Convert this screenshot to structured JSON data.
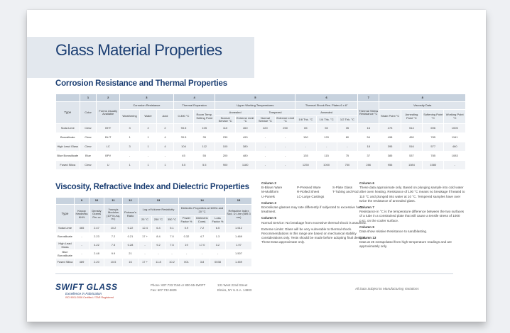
{
  "title": "Glass Material Properties",
  "section1": {
    "heading": "Corrosion Resistance and Thermal Properties",
    "colnums": [
      "1",
      "2",
      "3",
      "4",
      "5",
      "6",
      "7",
      "8"
    ],
    "type_label": "Type",
    "groups": {
      "color": "Color",
      "forms": "Forms Usually Available",
      "corrosion": "Corrosion Resistance",
      "thermal_expansion": "Thermal Expansion",
      "upper_working": "Upper Working Temperatures",
      "thermal_shock": "Thermal Shock Res. Plates 6 x 6\"",
      "thermal_stress": "Thermal Stress Resistance °C",
      "viscosity": "Viscosity Data",
      "annealed": "Annealed",
      "tempered": "Tempered",
      "annealed2": "Annealed"
    },
    "subheaders": [
      "Weathering",
      "Water",
      "Acid",
      "0-300 °C",
      "Room Temp. Setting Point",
      "Normal Service °C",
      "Extreme Limit °C",
      "Normal Service °C",
      "Extreme Limit °C",
      "1/8 Thk. °C",
      "1/4 Thk. °C",
      "1/2 Thk. °C",
      "Strain Point °C",
      "Annealing Point °C",
      "Softening Point °C",
      "Working Point °C"
    ],
    "rows": [
      [
        "Soda Lime",
        "Clear",
        "BHT",
        "3",
        "2",
        "2",
        "93.5",
        "105",
        "110",
        "460",
        "220",
        "250",
        "65",
        "50",
        "35",
        "16",
        "473",
        "514",
        "696",
        "1005"
      ],
      [
        "Borosilicate",
        "Clear",
        "BLIT",
        "1",
        "1",
        "4",
        "33.5",
        "35",
        "230",
        "490",
        "-",
        "-",
        "150",
        "120",
        "80",
        "54",
        "498",
        "450",
        "785",
        "1161"
      ],
      [
        "High Lead Glass",
        "Clear",
        "LC",
        "3",
        "1",
        "4",
        "104",
        "112",
        "100",
        "380",
        "-",
        "-",
        "-",
        "-",
        "-",
        "18",
        "395",
        "516",
        "577",
        "460"
      ],
      [
        "Blue Borosilicate",
        "Blue",
        "BPV",
        "-",
        "-",
        "-",
        "45",
        "55",
        "200",
        "480",
        "-",
        "-",
        "135",
        "115",
        "75",
        "37",
        "385",
        "537",
        "785",
        "1083"
      ],
      [
        "Fused Silica",
        "Clear",
        "U",
        "1",
        "1",
        "1",
        "5.5",
        "5.5",
        "900",
        "1180",
        "-",
        "-",
        "1250",
        "1000",
        "750",
        "286",
        "956",
        "1084",
        "1580",
        "-"
      ]
    ]
  },
  "section2": {
    "heading": "Viscosity, Refractive Index and Dielectric Properties",
    "colnums": [
      "9",
      "10",
      "11",
      "12",
      "13",
      "14",
      "15"
    ],
    "type_label": "Type",
    "headers": {
      "knoop": "Knoop Hardness KHN",
      "density": "Density Grams Per cc",
      "youngs": "Young's Modulus (10⁶ lb./sq. in.)",
      "poisson": "Poisson's Ratio",
      "log_resistivity": "Log of Volume Resistivity",
      "dielectric": "Dielectric Properties at 1MHz and 20 °C",
      "refractive": "Refractive Index Sod. D Line (589.3 nm)"
    },
    "subheaders": [
      "25 °C",
      "250 °C",
      "350 °C",
      "Power Factor %",
      "Dielectric Const.",
      "Loss Factor %"
    ],
    "rows": [
      [
        "Soda Lime",
        "465",
        "2.47",
        "10.2",
        "0.22",
        "12.4",
        "6.4",
        "5.1",
        "0.9",
        "7.2",
        "6.5",
        "1.512"
      ],
      [
        "Borosilicate",
        "-",
        "2.23",
        "7.2",
        "0.21",
        "17 +",
        "8.4",
        "7.0",
        "0.32",
        "4.7",
        "1.3",
        "1.469"
      ],
      [
        "High Lead Glass",
        "-",
        "4.22",
        "7.5",
        "0.28",
        "-",
        "9.2",
        "7.5",
        "19",
        "17.0",
        "3.2",
        "1.97"
      ],
      [
        "Blue Borosilicate",
        "-",
        "2.48",
        "9.9",
        "21",
        "-",
        "-",
        "-",
        "-",
        "-",
        "-",
        "1.507"
      ],
      [
        "Fused Silica",
        "489",
        "2.20",
        "10.5",
        "16",
        "17 +",
        "11.8",
        "10.2",
        "001",
        "3.8",
        "0038",
        "1.459"
      ]
    ]
  },
  "notes": {
    "col2": {
      "heading": "Column 2",
      "items": [
        "B-Blown Ware",
        "P-Pressed Ware",
        "S-Plate Glass",
        "M-Multiform",
        "R-Rolled Sheet",
        "T-Tubing and Rod",
        "U-Panels",
        "LC-Large Castings",
        ""
      ]
    },
    "col3": {
      "heading": "Column 3",
      "text": "Borosilicate glasses may rate differently if subjected to excessive heat treatment."
    },
    "col5": {
      "heading": "Column 5",
      "text": "Normal Service: No breakage from excessive thermal shock is assumed.",
      "text2": "Extreme Limits: Glass will be very vulnerable to thermal shock. Recommendations in this range are based on mechanical stability considerations only. Tests should be made before adopting final designs. These Data approximate only."
    },
    "col6": {
      "heading": "Column 6",
      "text": "These data approximate only. Based on plunging sample into cold water after oven heating. Resistance of 100 °C means no breakage if heated to 110 °C and plunged into water at 10 °C. Tempered samples have over twice the resistance of annealed glass."
    },
    "col7": {
      "heading": "Column 7",
      "text": "Resistance in °C is the temperature difference between the two surfaces of a tube in a constrained plate that will cause a tensile stress of 1000 p.s.i. on the cooler surface."
    },
    "col9": {
      "heading": "Column 9",
      "text": "Data show relative Resistance to sandblasting."
    },
    "col13": {
      "heading": "Column 13",
      "text": "Data at 25 extrapolated from high temperature readings and are approximately only."
    }
  },
  "footer": {
    "logo": "SWIFT GLASS",
    "tagline": "Excellence in Fabrication",
    "certification": "ISO 9001:2008 Certified / ITAR Registered",
    "phone": "Phone: 607.733.7166 or 800-55-SWIFT",
    "fax": "Fax: 607.732.5829",
    "address1": "131 West 22nd Street",
    "address2": "Elmira, NY U.S.A. 14903",
    "disclaimer": "All Data Subject to Manufacturing Variations"
  }
}
